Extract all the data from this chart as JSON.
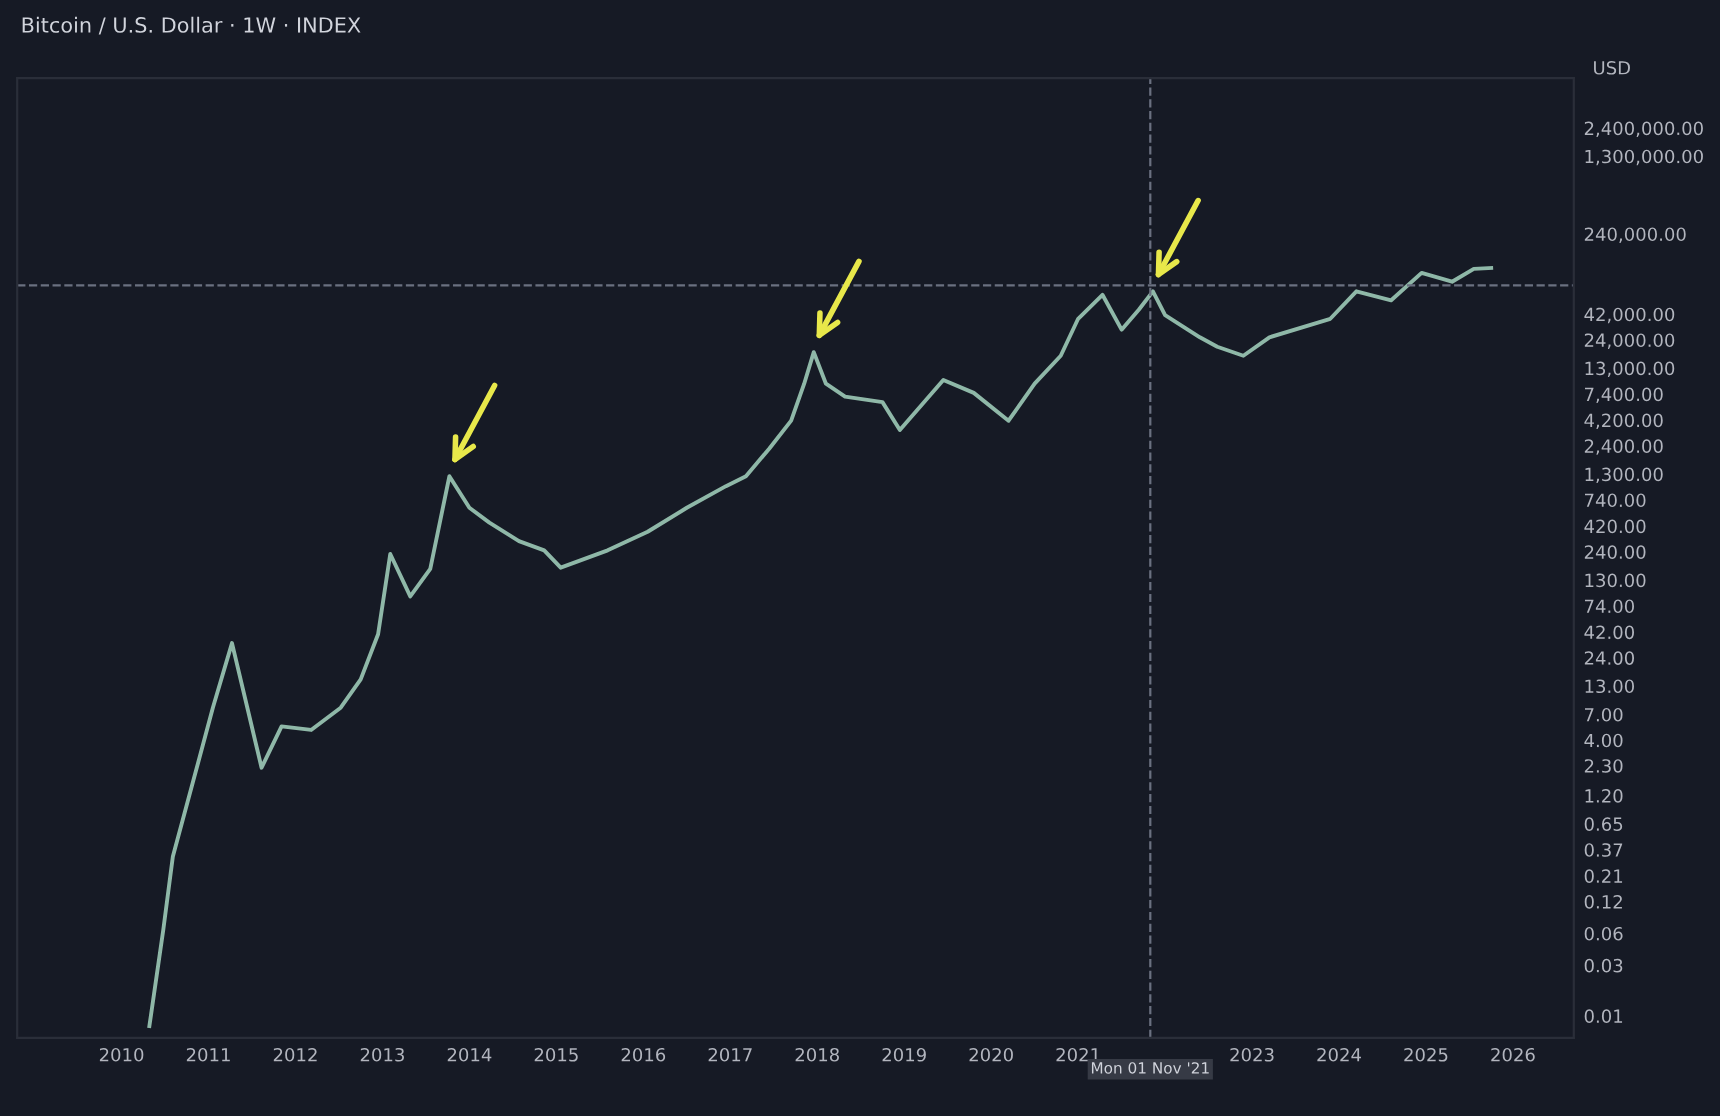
{
  "chart_data": {
    "type": "line",
    "title": "Bitcoin / U.S. Dollar · 1W · INDEX",
    "ylabel": "USD",
    "log": "y",
    "grid": false,
    "marker": "none",
    "line_style": "solid",
    "x": [
      2010.32,
      2010.48,
      2010.59,
      2010.82,
      2011.05,
      2011.27,
      2011.61,
      2011.84,
      2012.18,
      2012.52,
      2012.75,
      2012.95,
      2013.09,
      2013.32,
      2013.55,
      2013.77,
      2014.0,
      2014.23,
      2014.57,
      2014.86,
      2015.05,
      2015.59,
      2016.05,
      2016.5,
      2016.95,
      2017.18,
      2017.45,
      2017.7,
      2017.85,
      2017.96,
      2018.1,
      2018.32,
      2018.75,
      2018.95,
      2019.45,
      2019.8,
      2020.2,
      2020.5,
      2020.8,
      2021.0,
      2021.28,
      2021.5,
      2021.7,
      2021.86,
      2022.0,
      2022.4,
      2022.6,
      2022.9,
      2023.2,
      2023.9,
      2024.2,
      2024.6,
      2024.95,
      2025.3,
      2025.55,
      2025.75
    ],
    "series": [
      {
        "color": "#8fb8a8",
        "values": [
          0.008,
          0.065,
          0.32,
          1.6,
          8.1,
          33,
          2.2,
          5.4,
          5,
          8.1,
          15,
          40,
          229,
          91,
          166,
          1240,
          625,
          453,
          303,
          248,
          170,
          248,
          371,
          625,
          1000,
          1240,
          2270,
          4150,
          9270,
          18400,
          9270,
          7000,
          6210,
          3390,
          10050,
          7590,
          4150,
          9270,
          17000,
          38000,
          64000,
          30000,
          46500,
          69000,
          41100,
          25400,
          20700,
          17000,
          25400,
          38000,
          69000,
          56800,
          103000,
          85000,
          112500,
          114700
        ]
      }
    ],
    "xlim": [
      2008.8,
      2026.7
    ],
    "ylim": [
      0.0062,
      7100000
    ],
    "xticks": [
      2010,
      2011,
      2012,
      2013,
      2014,
      2015,
      2016,
      2017,
      2018,
      2019,
      2020,
      2021,
      2023,
      2024,
      2025,
      2026
    ],
    "yticks": [
      {
        "value": 0.01,
        "label": "0.01"
      },
      {
        "value": 0.03,
        "label": "0.03"
      },
      {
        "value": 0.06,
        "label": "0.06"
      },
      {
        "value": 0.12,
        "label": "0.12"
      },
      {
        "value": 0.21,
        "label": "0.21"
      },
      {
        "value": 0.37,
        "label": "0.37"
      },
      {
        "value": 0.65,
        "label": "0.65"
      },
      {
        "value": 1.2,
        "label": "1.20"
      },
      {
        "value": 2.3,
        "label": "2.30"
      },
      {
        "value": 4,
        "label": "4.00"
      },
      {
        "value": 7,
        "label": "7.00"
      },
      {
        "value": 13,
        "label": "13.00"
      },
      {
        "value": 24,
        "label": "24.00"
      },
      {
        "value": 42,
        "label": "42.00"
      },
      {
        "value": 74,
        "label": "74.00"
      },
      {
        "value": 130,
        "label": "130.00"
      },
      {
        "value": 240,
        "label": "240.00"
      },
      {
        "value": 420,
        "label": "420.00"
      },
      {
        "value": 740,
        "label": "740.00"
      },
      {
        "value": 1300,
        "label": "1,300.00"
      },
      {
        "value": 2400,
        "label": "2,400.00"
      },
      {
        "value": 4200,
        "label": "4,200.00"
      },
      {
        "value": 7400,
        "label": "7,400.00"
      },
      {
        "value": 13000,
        "label": "13,000.00"
      },
      {
        "value": 24000,
        "label": "24,000.00"
      },
      {
        "value": 42000,
        "label": "42,000.00"
      },
      {
        "value": 240000,
        "label": "240,000.00"
      },
      {
        "value": 1300000,
        "label": "1,300,000.00"
      },
      {
        "value": 2400000,
        "label": "2,400,000.00"
      }
    ],
    "ref_lines": [
      {
        "axis": "x",
        "value": 2021.83,
        "label": "Mon 01 Nov '21",
        "color": "#6a7080",
        "line_style": "dashed"
      },
      {
        "axis": "y",
        "value": 78444,
        "color": "#6a7080",
        "line_style": "dashed"
      }
    ]
  }
}
